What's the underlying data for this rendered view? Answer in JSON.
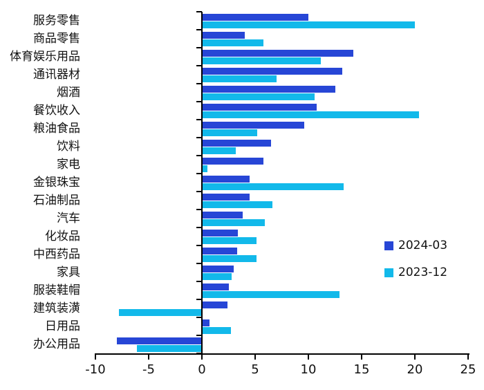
{
  "chart_data": {
    "type": "bar",
    "orientation": "horizontal",
    "title": "",
    "xlabel": "",
    "ylabel": "",
    "xlim": [
      -10,
      25
    ],
    "x_ticks": [
      -10,
      -5,
      0,
      5,
      10,
      15,
      20,
      25
    ],
    "grid": false,
    "legend_position": "middle-right",
    "axis_color": "#000000",
    "categories": [
      "服务零售",
      "商品零售",
      "体育娱乐用品",
      "通讯器材",
      "烟酒",
      "餐饮收入",
      "粮油食品",
      "饮料",
      "家电",
      "金银珠宝",
      "石油制品",
      "汽车",
      "化妆品",
      "中西药品",
      "家具",
      "服装鞋帽",
      "建筑装潢",
      "日用品",
      "办公用品"
    ],
    "series": [
      {
        "name": "2024-03",
        "color": "#2746D6",
        "values": [
          10.0,
          4.0,
          14.2,
          13.2,
          12.5,
          10.8,
          9.6,
          6.5,
          5.8,
          4.5,
          4.5,
          3.8,
          3.4,
          3.3,
          3.0,
          2.5,
          2.4,
          0.7,
          -8.0
        ]
      },
      {
        "name": "2023-12",
        "color": "#12B9EA",
        "values": [
          20.0,
          5.8,
          11.2,
          7.0,
          10.6,
          20.4,
          5.2,
          3.2,
          0.5,
          13.3,
          6.6,
          5.9,
          5.1,
          5.1,
          2.8,
          12.9,
          -7.8,
          2.7,
          -6.1
        ]
      }
    ]
  }
}
